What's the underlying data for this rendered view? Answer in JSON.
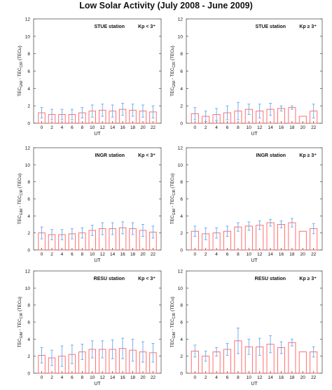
{
  "figure_title": "Low Solar Activity (July 2008 - June 2009)",
  "chart_data": [
    {
      "type": "bar",
      "station": "STUE station",
      "kp_label": "Kp < 3⁺",
      "xlabel": "UT",
      "ylabel": "TEC GIM - TEC CIR (TECu)",
      "ylim": [
        0,
        12
      ],
      "yticks": [
        0,
        2,
        4,
        6,
        8,
        10,
        12
      ],
      "categories": [
        "0",
        "2",
        "4",
        "6",
        "8",
        "10",
        "12",
        "14",
        "16",
        "18",
        "20",
        "22"
      ],
      "values": [
        1.2,
        1.0,
        1.0,
        1.0,
        1.2,
        1.4,
        1.5,
        1.4,
        1.6,
        1.5,
        1.4,
        1.3
      ],
      "errors": [
        0.6,
        0.6,
        0.6,
        0.6,
        0.6,
        0.7,
        0.7,
        0.7,
        0.7,
        0.7,
        0.7,
        0.7
      ]
    },
    {
      "type": "bar",
      "station": "STUE station",
      "kp_label": "Kp ≥ 3⁺",
      "xlabel": "UT",
      "ylabel": "TEC GIM - TEC CIR (TECu)",
      "ylim": [
        0,
        12
      ],
      "yticks": [
        0,
        2,
        4,
        6,
        8,
        10,
        12
      ],
      "categories": [
        "0",
        "2",
        "4",
        "6",
        "8",
        "10",
        "12",
        "14",
        "16",
        "18",
        "20",
        "22"
      ],
      "values": [
        1.1,
        0.8,
        1.0,
        1.2,
        1.4,
        1.6,
        1.4,
        1.6,
        1.7,
        1.8,
        0.8,
        1.4
      ],
      "errors": [
        0.7,
        0.6,
        0.7,
        0.8,
        1.0,
        0.6,
        0.8,
        0.7,
        0.3,
        0.2,
        0.0,
        0.8
      ]
    },
    {
      "type": "bar",
      "station": "INGR station",
      "kp_label": "Kp < 3⁺",
      "xlabel": "UT",
      "ylabel": "TEC GIM - TEC CIR (TECu)",
      "ylim": [
        0,
        12
      ],
      "yticks": [
        0,
        2,
        4,
        6,
        8,
        10,
        12
      ],
      "categories": [
        "0",
        "2",
        "4",
        "6",
        "8",
        "10",
        "12",
        "14",
        "16",
        "18",
        "20",
        "22"
      ],
      "values": [
        2.0,
        1.8,
        1.8,
        1.9,
        2.0,
        2.3,
        2.5,
        2.5,
        2.6,
        2.5,
        2.3,
        2.1
      ],
      "errors": [
        0.7,
        0.6,
        0.6,
        0.6,
        0.6,
        0.6,
        0.7,
        0.7,
        0.7,
        0.7,
        0.7,
        0.7
      ]
    },
    {
      "type": "bar",
      "station": "INGR station",
      "kp_label": "Kp ≥ 3⁺",
      "xlabel": "UT",
      "ylabel": "TEC GIM - TEC CIR (TECu)",
      "ylim": [
        0,
        12
      ],
      "yticks": [
        0,
        2,
        4,
        6,
        8,
        10,
        12
      ],
      "categories": [
        "0",
        "2",
        "4",
        "6",
        "8",
        "10",
        "12",
        "14",
        "16",
        "18",
        "20",
        "22"
      ],
      "values": [
        2.2,
        1.9,
        2.0,
        2.2,
        2.7,
        2.8,
        2.9,
        3.2,
        3.0,
        3.2,
        2.2,
        2.5
      ],
      "errors": [
        0.6,
        0.7,
        0.6,
        0.6,
        0.5,
        0.5,
        0.5,
        0.4,
        0.4,
        0.5,
        0.0,
        0.6
      ]
    },
    {
      "type": "bar",
      "station": "RESU station",
      "kp_label": "Kp < 3⁺",
      "xlabel": "UT",
      "ylabel": "TEC GIM - TEC CIR (TECu)",
      "ylim": [
        0,
        12
      ],
      "yticks": [
        0,
        2,
        4,
        6,
        8,
        10,
        12
      ],
      "categories": [
        "0",
        "2",
        "4",
        "6",
        "8",
        "10",
        "12",
        "14",
        "16",
        "18",
        "20",
        "22"
      ],
      "values": [
        2.1,
        1.8,
        2.0,
        2.2,
        2.5,
        2.8,
        2.8,
        2.8,
        2.9,
        2.7,
        2.5,
        2.4
      ],
      "errors": [
        0.9,
        0.9,
        1.2,
        1.1,
        0.9,
        1.0,
        1.0,
        1.1,
        1.2,
        1.3,
        1.2,
        1.1
      ]
    },
    {
      "type": "bar",
      "station": "RESU station",
      "kp_label": "Kp ≥ 3⁺",
      "xlabel": "UT",
      "ylabel": "TEC GIM - TEC CIR (TECu)",
      "ylim": [
        0,
        12
      ],
      "yticks": [
        0,
        2,
        4,
        6,
        8,
        10,
        12
      ],
      "categories": [
        "0",
        "2",
        "4",
        "6",
        "8",
        "10",
        "12",
        "14",
        "16",
        "18",
        "20",
        "22"
      ],
      "values": [
        2.6,
        2.0,
        2.5,
        2.8,
        3.8,
        3.1,
        3.1,
        3.4,
        3.0,
        3.6,
        2.5,
        2.5
      ],
      "errors": [
        0.7,
        0.6,
        0.5,
        0.7,
        1.5,
        0.9,
        1.0,
        1.0,
        0.7,
        0.4,
        0.0,
        0.6
      ]
    }
  ],
  "colors": {
    "bar_edge": "#ff6060",
    "error_bar": "#6aa9f0",
    "axis": "#555555",
    "text": "#111111"
  }
}
